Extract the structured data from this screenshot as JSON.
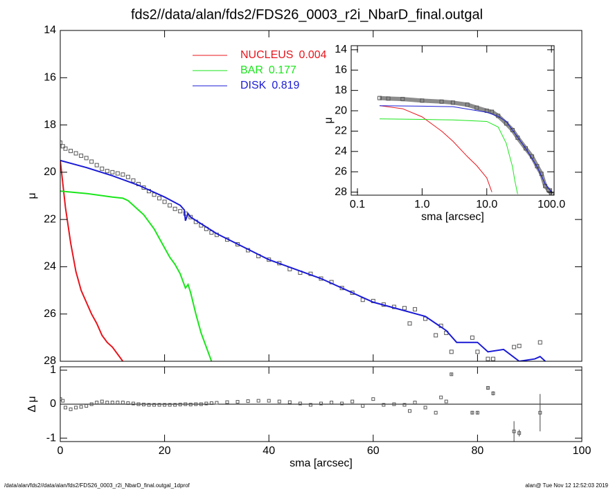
{
  "title": "fds2//data/alan/fds2/FDS26_0003_r2i_NbarD_final.outgal",
  "footer": {
    "left": "/data/alan/fds2//data/alan/fds2/FDS26_0003_r2i_NbarD_final.outgal_1dprof",
    "right": "alan@  Tue Nov 12 12:52:03 2019"
  },
  "chart_data": [
    {
      "type": "line",
      "ylabel": "μ",
      "xlim": [
        0,
        100
      ],
      "xticks": [
        0,
        20,
        40,
        60,
        80,
        100
      ],
      "ylim": [
        28,
        14
      ],
      "yticks": [
        14,
        16,
        18,
        20,
        22,
        24,
        26,
        28
      ],
      "legend": "top-center",
      "points": {
        "color": "#555555",
        "x": [
          0,
          0.5,
          1,
          2,
          3,
          4,
          5,
          6,
          7,
          8,
          9,
          10,
          11,
          12,
          13,
          14,
          15,
          16,
          17,
          18,
          19,
          20,
          21,
          22,
          23,
          24,
          25,
          26,
          27,
          28,
          29,
          30,
          32,
          34,
          36,
          38,
          40,
          42,
          44,
          46,
          48,
          50,
          52,
          54,
          56,
          58,
          60,
          62,
          64,
          66,
          67,
          68,
          70,
          72,
          73,
          74,
          75,
          79,
          80,
          82,
          83,
          87,
          88,
          92
        ],
        "values": [
          18.75,
          18.9,
          19.0,
          19.1,
          19.2,
          19.3,
          19.4,
          19.55,
          19.7,
          19.85,
          19.95,
          20.0,
          20.05,
          20.1,
          20.2,
          20.35,
          20.5,
          20.65,
          20.8,
          20.95,
          21.1,
          21.25,
          21.4,
          21.55,
          21.65,
          21.75,
          21.9,
          22.1,
          22.25,
          22.4,
          22.55,
          22.65,
          22.85,
          23.05,
          23.3,
          23.55,
          23.7,
          23.85,
          24.1,
          24.25,
          24.3,
          24.5,
          24.65,
          24.9,
          25.1,
          25.4,
          25.45,
          25.6,
          25.7,
          25.75,
          26.4,
          25.8,
          26.2,
          26.9,
          26.5,
          26.8,
          27.6,
          27.0,
          27.6,
          27.9,
          27.9,
          27.4,
          27.35,
          27.2
        ]
      },
      "series": [
        {
          "name": "NUCLEUS",
          "fraction": 0.004,
          "color": "#e8141c",
          "x": [
            0,
            1,
            2,
            3,
            4,
            5,
            6,
            7,
            8,
            9,
            10,
            11,
            12
          ],
          "values": [
            19.5,
            21.5,
            23.0,
            24.2,
            25.0,
            25.5,
            26.0,
            26.4,
            26.9,
            27.2,
            27.4,
            27.7,
            28.0
          ]
        },
        {
          "name": "BAR",
          "fraction": 0.177,
          "color": "#19e619",
          "x": [
            0,
            5,
            10,
            12,
            13,
            14,
            15,
            16,
            17,
            18,
            19,
            20,
            21,
            22,
            23,
            24,
            24.5,
            25,
            26,
            27,
            28,
            29
          ],
          "values": [
            20.8,
            20.9,
            21.05,
            21.1,
            21.2,
            21.4,
            21.6,
            21.8,
            22.1,
            22.4,
            22.8,
            23.2,
            23.6,
            23.9,
            24.3,
            24.9,
            24.75,
            25.1,
            26.0,
            26.8,
            27.4,
            28.0
          ]
        },
        {
          "name": "DISK",
          "fraction": 0.819,
          "color": "#1a1ad6",
          "x": [
            0,
            5,
            10,
            15,
            20,
            23,
            23.8,
            24,
            24.5,
            25,
            30,
            40,
            50,
            60,
            65,
            70,
            72,
            74,
            76,
            80,
            82,
            85,
            88,
            91,
            92,
            93
          ],
          "values": [
            19.5,
            19.8,
            20.15,
            20.55,
            21.05,
            21.4,
            21.6,
            22.05,
            21.75,
            21.9,
            22.6,
            23.7,
            24.5,
            25.5,
            25.8,
            26.1,
            26.4,
            26.7,
            27.2,
            27.2,
            27.6,
            27.5,
            28.0,
            27.9,
            27.8,
            28.0
          ]
        }
      ]
    },
    {
      "type": "scatter",
      "ylabel": "Δ μ",
      "xlabel": "sma [arcsec]",
      "xlim": [
        0,
        100
      ],
      "xticks": [
        0,
        20,
        40,
        60,
        80,
        100
      ],
      "ylim": [
        -1.1,
        1.1
      ],
      "yticks": [
        -1,
        0,
        1
      ],
      "points": {
        "color": "#555555",
        "x": [
          0,
          0.5,
          1,
          2,
          3,
          4,
          5,
          6,
          7,
          8,
          9,
          10,
          11,
          12,
          13,
          14,
          15,
          16,
          17,
          18,
          19,
          20,
          21,
          22,
          23,
          24,
          25,
          26,
          27,
          28,
          29,
          30,
          32,
          34,
          36,
          38,
          40,
          42,
          44,
          46,
          48,
          50,
          52,
          54,
          56,
          58,
          60,
          62,
          64,
          66,
          67,
          68,
          70,
          72,
          73,
          74,
          75,
          79,
          80,
          82,
          83,
          87,
          88,
          92
        ],
        "values": [
          0.15,
          0.1,
          -0.1,
          -0.15,
          -0.1,
          -0.08,
          -0.05,
          0.0,
          0.05,
          0.08,
          0.05,
          0.05,
          0.05,
          0.05,
          0.03,
          0.02,
          0.0,
          -0.01,
          -0.02,
          -0.02,
          -0.02,
          -0.02,
          -0.02,
          -0.02,
          -0.01,
          0.0,
          -0.01,
          0.0,
          0.0,
          0.02,
          0.03,
          0.04,
          0.06,
          0.07,
          0.09,
          0.1,
          0.1,
          0.08,
          0.06,
          0.02,
          -0.02,
          0.02,
          0.05,
          0.02,
          0.08,
          -0.05,
          0.15,
          -0.02,
          0.0,
          -0.02,
          -0.2,
          0.05,
          -0.1,
          -0.25,
          0.2,
          0.08,
          0.88,
          -0.25,
          -0.25,
          0.48,
          0.32,
          -0.8,
          -0.85,
          -0.25
        ],
        "errors": [
          null,
          null,
          null,
          null,
          null,
          null,
          null,
          null,
          null,
          null,
          null,
          null,
          null,
          null,
          null,
          null,
          null,
          null,
          null,
          null,
          null,
          null,
          null,
          null,
          null,
          null,
          null,
          null,
          null,
          null,
          null,
          null,
          null,
          null,
          null,
          null,
          null,
          null,
          null,
          null,
          null,
          null,
          null,
          null,
          null,
          null,
          null,
          null,
          null,
          null,
          null,
          null,
          null,
          null,
          null,
          null,
          0.03,
          0.05,
          0.05,
          0.05,
          0.06,
          0.3,
          0.1,
          0.55
        ]
      }
    },
    {
      "type": "line",
      "ylabel": "μ",
      "xlabel": "sma [arcsec]",
      "log_x": true,
      "xlim": [
        0.08,
        110
      ],
      "xticks": [
        {
          "value": 0.1,
          "label": "0.1"
        },
        {
          "value": 1,
          "label": "1.0"
        },
        {
          "value": 10,
          "label": "10.0"
        },
        {
          "value": 100,
          "label": "100.0"
        }
      ],
      "ylim": [
        28.3,
        13.6
      ],
      "yticks": [
        14,
        16,
        18,
        20,
        22,
        24,
        26,
        28
      ],
      "points": {
        "color": "#555555",
        "band_color": "#8c8c8c",
        "x": [
          0.22,
          0.3,
          0.5,
          1,
          2,
          3,
          5,
          7,
          10,
          12,
          15,
          20,
          25,
          30,
          40,
          50,
          60,
          70,
          80,
          90,
          100
        ],
        "values": [
          18.75,
          18.8,
          18.85,
          19.0,
          19.1,
          19.2,
          19.4,
          19.7,
          20.0,
          20.1,
          20.5,
          21.25,
          21.9,
          22.65,
          23.7,
          24.5,
          25.45,
          26.2,
          27.4,
          27.8,
          28.2
        ]
      },
      "series": [
        {
          "color": "#e8141c",
          "x": [
            0.22,
            0.5,
            1,
            2,
            3,
            5,
            7,
            10,
            12
          ],
          "values": [
            19.5,
            19.8,
            20.6,
            22.0,
            23.0,
            24.5,
            25.4,
            26.6,
            28.0
          ]
        },
        {
          "color": "#19e619",
          "x": [
            0.22,
            1,
            3,
            10,
            15,
            20,
            22,
            25,
            27,
            30
          ],
          "values": [
            20.8,
            20.85,
            20.9,
            21.05,
            21.6,
            23.2,
            24.2,
            25.5,
            26.8,
            28.2
          ]
        },
        {
          "color": "#1a1ad6",
          "x": [
            0.22,
            1,
            3,
            10,
            15,
            20,
            30,
            40,
            60,
            80,
            100
          ],
          "values": [
            19.5,
            19.55,
            19.6,
            20.15,
            20.55,
            21.05,
            22.6,
            23.7,
            25.5,
            27.2,
            28.0
          ]
        }
      ]
    }
  ]
}
